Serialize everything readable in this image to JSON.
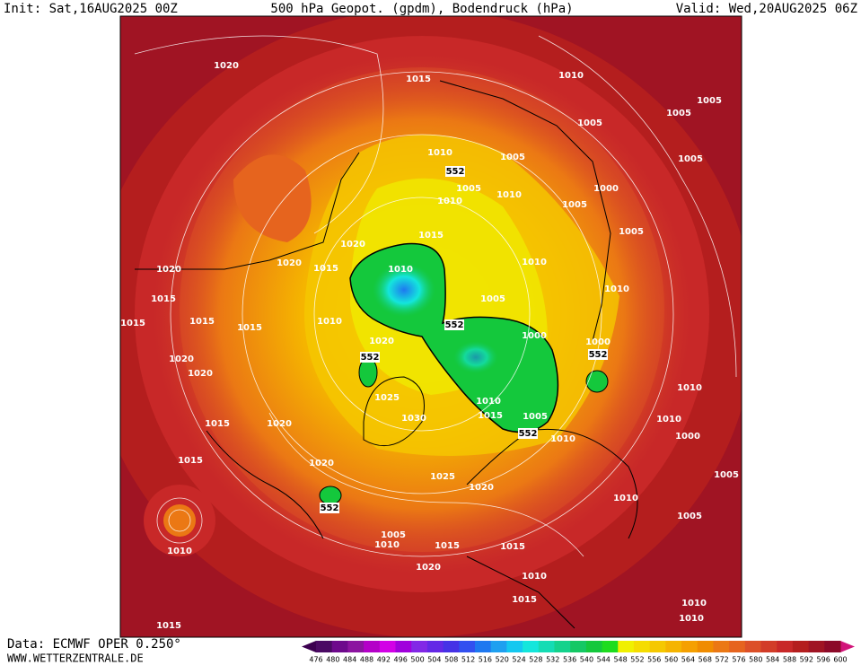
{
  "header": {
    "init": "Init: Sat,16AUG2025 00Z",
    "title": "500 hPa Geopot. (gpdm), Bodendruck (hPa)",
    "valid": "Valid: Wed,20AUG2025 06Z"
  },
  "footer": {
    "source": "Data: ECMWF OPER 0.250°",
    "site": "WWW.WETTERZENTRALE.DE"
  },
  "legend": {
    "labels": [
      476,
      480,
      484,
      488,
      492,
      496,
      500,
      504,
      508,
      512,
      516,
      520,
      524,
      528,
      532,
      536,
      540,
      544,
      548,
      552,
      556,
      560,
      564,
      568,
      572,
      576,
      580,
      584,
      588,
      592,
      596,
      600
    ],
    "colors": [
      "#3c0050",
      "#4b0a64",
      "#6e0a8c",
      "#8c14a0",
      "#b400c8",
      "#d200e6",
      "#a000dc",
      "#8228e6",
      "#6428e6",
      "#4632e6",
      "#3250f0",
      "#1e78f0",
      "#1ea0f0",
      "#14c8f0",
      "#14e6dc",
      "#14dcb4",
      "#14d28c",
      "#14c864",
      "#14c83c",
      "#1edc1e",
      "#f0f000",
      "#f5dc00",
      "#f5c800",
      "#f5b400",
      "#f5a000",
      "#f08c00",
      "#eb7814",
      "#e6641e",
      "#dc5028",
      "#d23c28",
      "#c82828",
      "#b41e1e",
      "#a01423",
      "#8c0a28",
      "#d2147a"
    ]
  },
  "map": {
    "isobar_labels": [
      "1020",
      "1015",
      "1010",
      "1005",
      "1005",
      "1005",
      "1010",
      "1005",
      "552",
      "1005",
      "1010",
      "1010",
      "1000",
      "1005",
      "1005",
      "1015",
      "1020",
      "1005",
      "1010",
      "1020",
      "1015",
      "1010",
      "1020",
      "1015",
      "1015",
      "1015",
      "1015",
      "1010",
      "1005",
      "552",
      "1010",
      "1020",
      "552",
      "1000",
      "1000",
      "552",
      "1020",
      "1020",
      "1025",
      "1010",
      "1015",
      "1030",
      "1005",
      "1010",
      "1010",
      "1015",
      "1020",
      "552",
      "1010",
      "1000",
      "1005",
      "1015",
      "1020",
      "1025",
      "1020",
      "1010",
      "552",
      "1005",
      "1010",
      "1005",
      "1010",
      "1015",
      "1015",
      "1020",
      "1010",
      "1015",
      "1010",
      "1010",
      "1015"
    ]
  }
}
